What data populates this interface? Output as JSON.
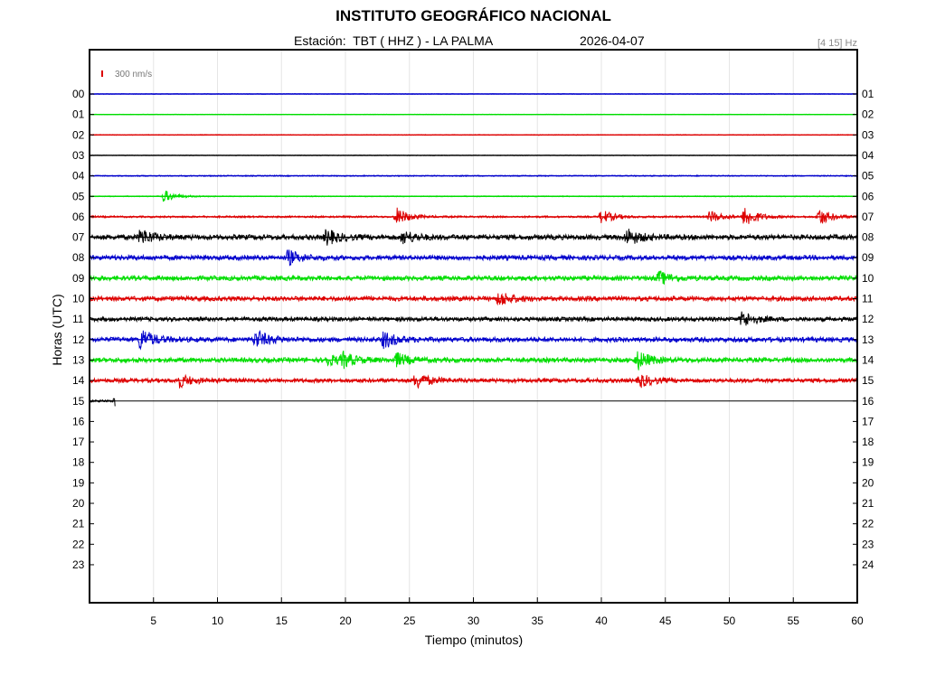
{
  "header": {
    "title": "INSTITUTO GEOGRÁFICO NACIONAL",
    "station": "Estación:  TBT ( HHZ ) - LA PALMA",
    "date": "2026-04-07",
    "filter": "[4 15] Hz"
  },
  "chart_data": {
    "type": "line",
    "title": "INSTITUTO GEOGRÁFICO NACIONAL",
    "xlabel": "Tiempo (minutos)",
    "ylabel": "Horas (UTC)",
    "xlim": [
      0,
      60
    ],
    "x_ticks": [
      "5",
      "10",
      "15",
      "20",
      "25",
      "30",
      "35",
      "40",
      "45",
      "50",
      "55",
      "60"
    ],
    "grid": true,
    "scale_bar_label": "300 nm/s",
    "left_hour_labels": [
      "00",
      "01",
      "02",
      "03",
      "04",
      "05",
      "06",
      "07",
      "08",
      "09",
      "10",
      "11",
      "12",
      "13",
      "14",
      "15",
      "16",
      "17",
      "18",
      "19",
      "20",
      "21",
      "22",
      "23"
    ],
    "right_hour_labels": [
      "01",
      "02",
      "03",
      "04",
      "05",
      "06",
      "07",
      "08",
      "09",
      "10",
      "11",
      "12",
      "13",
      "14",
      "15",
      "16",
      "17",
      "18",
      "19",
      "20",
      "21",
      "22",
      "23",
      "24"
    ],
    "trace_colors": [
      "#0000cc",
      "#00dd00",
      "#dd0000",
      "#000000"
    ],
    "recorded_until_minute_in_hour_15": 2,
    "noise_level_per_hour": [
      0.3,
      0.3,
      0.4,
      0.3,
      0.6,
      0.5,
      1.0,
      2.8,
      2.6,
      2.6,
      2.6,
      2.3,
      2.6,
      2.6,
      2.3,
      1.2
    ],
    "events_per_hour": [
      [],
      [],
      [],
      [],
      [],
      [
        {
          "minute": 5.8,
          "amplitude": 7
        }
      ],
      [
        {
          "minute": 24.0,
          "amplitude": 10
        },
        {
          "minute": 40.0,
          "amplitude": 8
        },
        {
          "minute": 48.5,
          "amplitude": 7
        },
        {
          "minute": 51.2,
          "amplitude": 12
        },
        {
          "minute": 57.0,
          "amplitude": 10
        }
      ],
      [
        {
          "minute": 4.0,
          "amplitude": 9
        },
        {
          "minute": 18.5,
          "amplitude": 8
        },
        {
          "minute": 24.5,
          "amplitude": 7
        },
        {
          "minute": 42.0,
          "amplitude": 9
        }
      ],
      [
        {
          "minute": 15.5,
          "amplitude": 8
        }
      ],
      [
        {
          "minute": 44.5,
          "amplitude": 7
        }
      ],
      [
        {
          "minute": 32.0,
          "amplitude": 8
        }
      ],
      [
        {
          "minute": 51.0,
          "amplitude": 9
        }
      ],
      [
        {
          "minute": 4.0,
          "amplitude": 12
        },
        {
          "minute": 13.0,
          "amplitude": 10
        },
        {
          "minute": 23.0,
          "amplitude": 9
        }
      ],
      [
        {
          "minute": 18.5,
          "amplitude": 6
        },
        {
          "minute": 19.8,
          "amplitude": 7
        },
        {
          "minute": 24.0,
          "amplitude": 7
        },
        {
          "minute": 42.8,
          "amplitude": 10
        }
      ],
      [
        {
          "minute": 7.0,
          "amplitude": 7
        },
        {
          "minute": 25.5,
          "amplitude": 9
        },
        {
          "minute": 43.0,
          "amplitude": 7
        }
      ],
      [
        {
          "minute": 2.0,
          "amplitude": 5
        }
      ]
    ]
  }
}
